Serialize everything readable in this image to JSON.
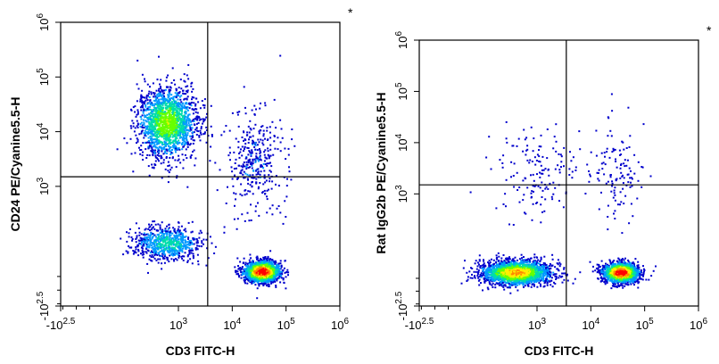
{
  "chart_data": [
    {
      "type": "scatter",
      "subtype": "flow-cytometry-density-dot-plot",
      "title": "",
      "xlabel": "CD3 FITC-H",
      "ylabel": "CD24 PE/Cyanine5.5-H",
      "corner_mark": "*",
      "scale": "biexponential",
      "x_ticks": [
        {
          "base": "-10",
          "exp": "2.5",
          "value": -316
        },
        {
          "base": "10",
          "exp": "3",
          "value": 1000
        },
        {
          "base": "10",
          "exp": "4",
          "value": 10000
        },
        {
          "base": "10",
          "exp": "5",
          "value": 100000
        },
        {
          "base": "10",
          "exp": "6",
          "value": 1000000
        }
      ],
      "y_ticks": [
        {
          "base": "-10",
          "exp": "2.5",
          "value": -316
        },
        {
          "base": "10",
          "exp": "3",
          "value": 1000
        },
        {
          "base": "10",
          "exp": "4",
          "value": 10000
        },
        {
          "base": "10",
          "exp": "5",
          "value": 100000
        },
        {
          "base": "10",
          "exp": "6",
          "value": 1000000
        }
      ],
      "gate": {
        "x": 3500,
        "y": 1500
      },
      "populations": [
        {
          "cx": 600,
          "cy": 15000,
          "sx": 0.28,
          "sy": 0.32,
          "n": 1700,
          "peak": 0.55
        },
        {
          "cx": 35000,
          "cy": -60,
          "sx": 0.17,
          "sy": 0.1,
          "n": 1400,
          "peak": 1.0
        },
        {
          "cx": 600,
          "cy": 150,
          "sx": 0.32,
          "sy": 0.16,
          "n": 700,
          "peak": 0.35
        },
        {
          "cx": 25000,
          "cy": 3000,
          "sx": 0.25,
          "sy": 0.45,
          "n": 350,
          "peak": 0.12
        }
      ],
      "density_colors": [
        "#0000cc",
        "#0099ff",
        "#00ddaa",
        "#66ff00",
        "#ffee00",
        "#ff8800",
        "#ff0000"
      ]
    },
    {
      "type": "scatter",
      "subtype": "flow-cytometry-density-dot-plot",
      "title": "",
      "xlabel": "CD3 FITC-H",
      "ylabel": "Rat IgG2b PE/Cyanine5.5-H",
      "corner_mark": "*",
      "scale": "biexponential",
      "x_ticks": [
        {
          "base": "-10",
          "exp": "2.5",
          "value": -316
        },
        {
          "base": "10",
          "exp": "3",
          "value": 1000
        },
        {
          "base": "10",
          "exp": "4",
          "value": 10000
        },
        {
          "base": "10",
          "exp": "5",
          "value": 100000
        },
        {
          "base": "10",
          "exp": "6",
          "value": 1000000
        }
      ],
      "y_ticks": [
        {
          "base": "-10",
          "exp": "2.5",
          "value": -316
        },
        {
          "base": "10",
          "exp": "3",
          "value": 1000
        },
        {
          "base": "10",
          "exp": "4",
          "value": 10000
        },
        {
          "base": "10",
          "exp": "5",
          "value": 100000
        },
        {
          "base": "10",
          "exp": "6",
          "value": 1000000
        }
      ],
      "gate": {
        "x": 3500,
        "y": 1500
      },
      "populations": [
        {
          "cx": 400,
          "cy": -50,
          "sx": 0.33,
          "sy": 0.12,
          "n": 2000,
          "peak": 0.75
        },
        {
          "cx": 35000,
          "cy": -50,
          "sx": 0.17,
          "sy": 0.1,
          "n": 1500,
          "peak": 1.0
        },
        {
          "cx": 1000,
          "cy": 3000,
          "sx": 0.4,
          "sy": 0.45,
          "n": 150,
          "peak": 0.05
        },
        {
          "cx": 30000,
          "cy": 3000,
          "sx": 0.25,
          "sy": 0.45,
          "n": 120,
          "peak": 0.05
        }
      ],
      "density_colors": [
        "#0000cc",
        "#0099ff",
        "#00ddaa",
        "#66ff00",
        "#ffee00",
        "#ff8800",
        "#ff0000"
      ]
    }
  ]
}
